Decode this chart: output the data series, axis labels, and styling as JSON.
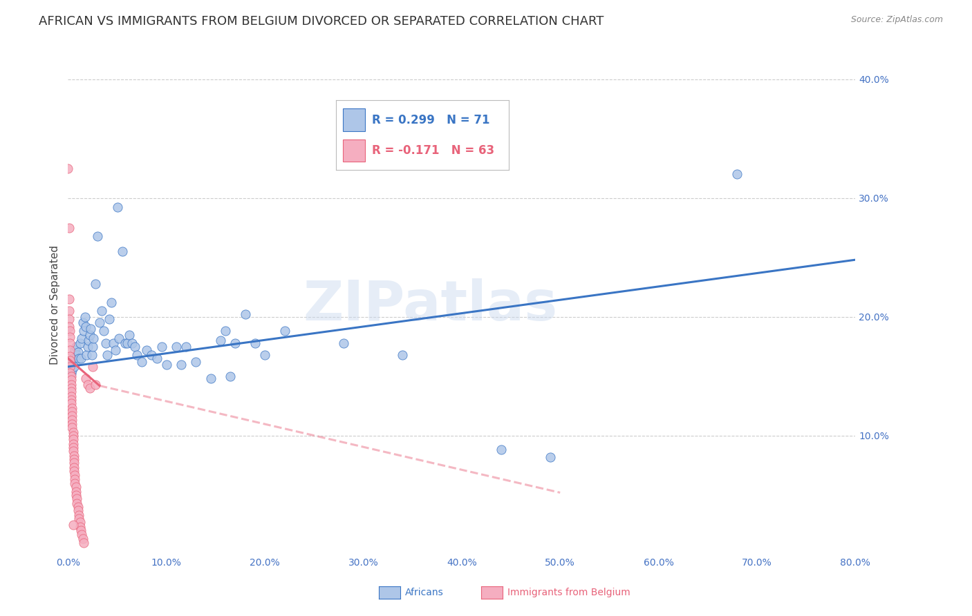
{
  "title": "AFRICAN VS IMMIGRANTS FROM BELGIUM DIVORCED OR SEPARATED CORRELATION CHART",
  "source": "Source: ZipAtlas.com",
  "ylabel": "Divorced or Separated",
  "watermark": "ZIPatlas",
  "legend_blue_r": "R = 0.299",
  "legend_blue_n": "N = 71",
  "legend_pink_r": "R = -0.171",
  "legend_pink_n": "N = 63",
  "xlim": [
    0.0,
    0.8
  ],
  "ylim": [
    0.0,
    0.42
  ],
  "yticks": [
    0.1,
    0.2,
    0.3,
    0.4
  ],
  "ytick_labels": [
    "10.0%",
    "20.0%",
    "30.0%",
    "40.0%"
  ],
  "xticks": [
    0.0,
    0.1,
    0.2,
    0.3,
    0.4,
    0.5,
    0.6,
    0.7,
    0.8
  ],
  "xtick_labels": [
    "0.0%",
    "10.0%",
    "20.0%",
    "30.0%",
    "40.0%",
    "50.0%",
    "60.0%",
    "70.0%",
    "80.0%"
  ],
  "blue_scatter": [
    [
      0.001,
      0.16
    ],
    [
      0.002,
      0.158
    ],
    [
      0.003,
      0.152
    ],
    [
      0.003,
      0.163
    ],
    [
      0.004,
      0.155
    ],
    [
      0.005,
      0.165
    ],
    [
      0.006,
      0.158
    ],
    [
      0.007,
      0.172
    ],
    [
      0.008,
      0.175
    ],
    [
      0.009,
      0.168
    ],
    [
      0.01,
      0.17
    ],
    [
      0.011,
      0.165
    ],
    [
      0.012,
      0.178
    ],
    [
      0.013,
      0.165
    ],
    [
      0.014,
      0.182
    ],
    [
      0.015,
      0.195
    ],
    [
      0.016,
      0.188
    ],
    [
      0.017,
      0.2
    ],
    [
      0.018,
      0.192
    ],
    [
      0.019,
      0.168
    ],
    [
      0.02,
      0.175
    ],
    [
      0.021,
      0.18
    ],
    [
      0.022,
      0.185
    ],
    [
      0.023,
      0.19
    ],
    [
      0.024,
      0.168
    ],
    [
      0.025,
      0.175
    ],
    [
      0.026,
      0.182
    ],
    [
      0.028,
      0.228
    ],
    [
      0.03,
      0.268
    ],
    [
      0.032,
      0.195
    ],
    [
      0.034,
      0.205
    ],
    [
      0.036,
      0.188
    ],
    [
      0.038,
      0.178
    ],
    [
      0.04,
      0.168
    ],
    [
      0.042,
      0.198
    ],
    [
      0.044,
      0.212
    ],
    [
      0.046,
      0.178
    ],
    [
      0.048,
      0.172
    ],
    [
      0.05,
      0.292
    ],
    [
      0.052,
      0.182
    ],
    [
      0.055,
      0.255
    ],
    [
      0.058,
      0.178
    ],
    [
      0.06,
      0.178
    ],
    [
      0.062,
      0.185
    ],
    [
      0.065,
      0.178
    ],
    [
      0.068,
      0.175
    ],
    [
      0.07,
      0.168
    ],
    [
      0.075,
      0.162
    ],
    [
      0.08,
      0.172
    ],
    [
      0.085,
      0.168
    ],
    [
      0.09,
      0.165
    ],
    [
      0.095,
      0.175
    ],
    [
      0.1,
      0.16
    ],
    [
      0.11,
      0.175
    ],
    [
      0.115,
      0.16
    ],
    [
      0.12,
      0.175
    ],
    [
      0.13,
      0.162
    ],
    [
      0.145,
      0.148
    ],
    [
      0.155,
      0.18
    ],
    [
      0.16,
      0.188
    ],
    [
      0.165,
      0.15
    ],
    [
      0.17,
      0.178
    ],
    [
      0.18,
      0.202
    ],
    [
      0.19,
      0.178
    ],
    [
      0.2,
      0.168
    ],
    [
      0.22,
      0.188
    ],
    [
      0.28,
      0.178
    ],
    [
      0.34,
      0.168
    ],
    [
      0.44,
      0.088
    ],
    [
      0.49,
      0.082
    ],
    [
      0.68,
      0.32
    ]
  ],
  "pink_scatter": [
    [
      0.0,
      0.325
    ],
    [
      0.001,
      0.275
    ],
    [
      0.001,
      0.215
    ],
    [
      0.001,
      0.205
    ],
    [
      0.001,
      0.198
    ],
    [
      0.001,
      0.192
    ],
    [
      0.002,
      0.188
    ],
    [
      0.002,
      0.183
    ],
    [
      0.002,
      0.178
    ],
    [
      0.002,
      0.172
    ],
    [
      0.002,
      0.167
    ],
    [
      0.002,
      0.163
    ],
    [
      0.002,
      0.158
    ],
    [
      0.002,
      0.153
    ],
    [
      0.003,
      0.15
    ],
    [
      0.003,
      0.147
    ],
    [
      0.003,
      0.143
    ],
    [
      0.003,
      0.14
    ],
    [
      0.003,
      0.137
    ],
    [
      0.003,
      0.133
    ],
    [
      0.003,
      0.13
    ],
    [
      0.003,
      0.127
    ],
    [
      0.004,
      0.123
    ],
    [
      0.004,
      0.12
    ],
    [
      0.004,
      0.117
    ],
    [
      0.004,
      0.113
    ],
    [
      0.004,
      0.11
    ],
    [
      0.004,
      0.107
    ],
    [
      0.005,
      0.103
    ],
    [
      0.005,
      0.1
    ],
    [
      0.005,
      0.097
    ],
    [
      0.005,
      0.093
    ],
    [
      0.005,
      0.09
    ],
    [
      0.005,
      0.087
    ],
    [
      0.006,
      0.083
    ],
    [
      0.006,
      0.08
    ],
    [
      0.006,
      0.077
    ],
    [
      0.006,
      0.073
    ],
    [
      0.006,
      0.07
    ],
    [
      0.007,
      0.067
    ],
    [
      0.007,
      0.063
    ],
    [
      0.007,
      0.06
    ],
    [
      0.008,
      0.057
    ],
    [
      0.008,
      0.053
    ],
    [
      0.008,
      0.05
    ],
    [
      0.009,
      0.047
    ],
    [
      0.009,
      0.043
    ],
    [
      0.01,
      0.04
    ],
    [
      0.01,
      0.037
    ],
    [
      0.011,
      0.033
    ],
    [
      0.011,
      0.03
    ],
    [
      0.012,
      0.027
    ],
    [
      0.012,
      0.023
    ],
    [
      0.013,
      0.02
    ],
    [
      0.014,
      0.017
    ],
    [
      0.015,
      0.013
    ],
    [
      0.016,
      0.01
    ],
    [
      0.018,
      0.148
    ],
    [
      0.02,
      0.143
    ],
    [
      0.022,
      0.14
    ],
    [
      0.025,
      0.158
    ],
    [
      0.028,
      0.143
    ],
    [
      0.005,
      0.025
    ]
  ],
  "blue_line": {
    "x0": 0.0,
    "y0": 0.158,
    "x1": 0.8,
    "y1": 0.248
  },
  "pink_line_solid": {
    "x0": 0.0,
    "y0": 0.165,
    "x1": 0.032,
    "y1": 0.142
  },
  "pink_line_dashed": {
    "x0": 0.032,
    "y0": 0.142,
    "x1": 0.5,
    "y1": 0.052
  },
  "blue_color": "#aec6e8",
  "blue_line_color": "#3a75c4",
  "pink_color": "#f5aec0",
  "pink_line_color": "#e8637a",
  "background_color": "#ffffff",
  "grid_color": "#cccccc",
  "tick_label_color": "#4472c4",
  "title_fontsize": 13,
  "axis_label_fontsize": 11,
  "tick_fontsize": 10,
  "legend_fontsize": 12
}
